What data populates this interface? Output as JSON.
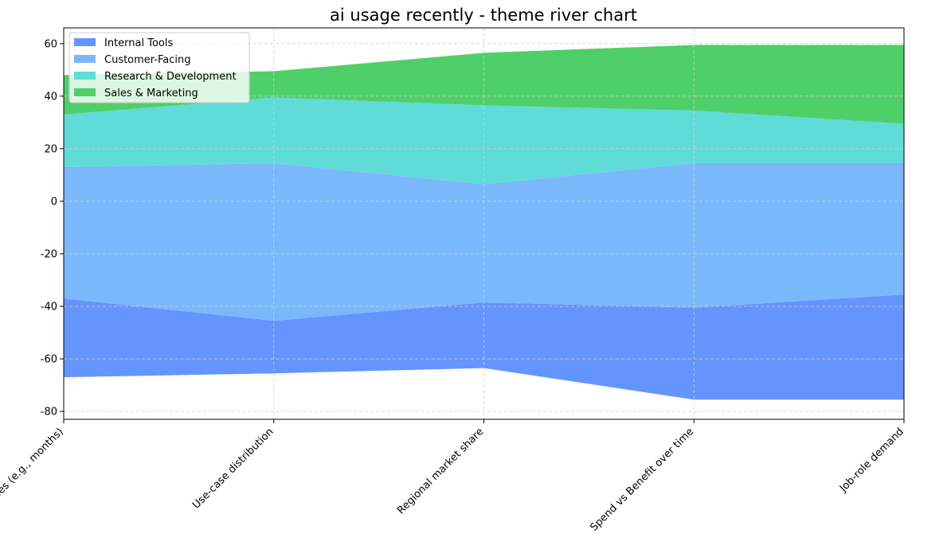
{
  "chart_data": {
    "type": "area",
    "title": "ai usage recently - theme river chart",
    "xlabel": "",
    "ylabel": "",
    "categories": [
      "Time series (e.g., months)",
      "Use-case distribution",
      "Regional market share",
      "Spend vs Benefit over time",
      "Job-role demand"
    ],
    "baseline": [
      -67,
      -65.5,
      -63.5,
      -75.5,
      -75.5
    ],
    "series": [
      {
        "name": "Internal Tools",
        "values": [
          30,
          20,
          25,
          35,
          40
        ],
        "color": "#6495fe"
      },
      {
        "name": "Customer-Facing",
        "values": [
          50,
          60,
          45,
          55,
          50
        ],
        "color": "#7ab8fb"
      },
      {
        "name": "Research & Development",
        "values": [
          20,
          25,
          30,
          20,
          15
        ],
        "color": "#5fdcd8"
      },
      {
        "name": "Sales & Marketing",
        "values": [
          15,
          10,
          20,
          25,
          30
        ],
        "color": "#4fcf6a"
      }
    ],
    "yticks": [
      -80,
      -60,
      -40,
      -20,
      0,
      20,
      40,
      60
    ],
    "ylim": [
      -83,
      66
    ],
    "grid": true,
    "legend_position": "top-left"
  }
}
